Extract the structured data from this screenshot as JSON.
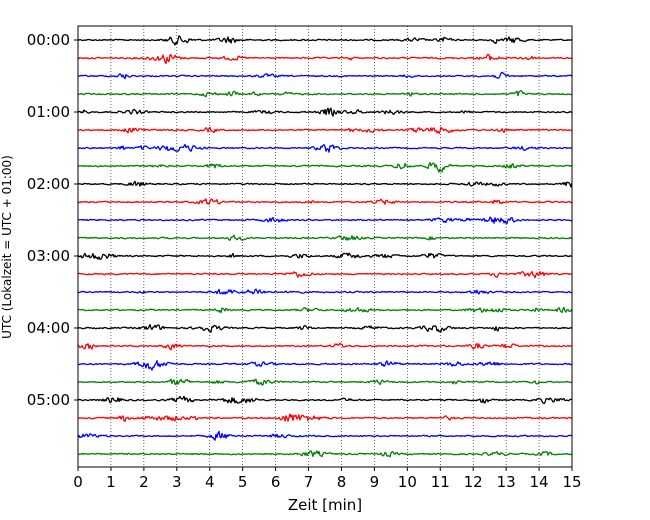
{
  "chart_data": {
    "type": "line",
    "title": "",
    "xlabel": "Zeit  [min]",
    "ylabel": "UTC (Lokalzeit = UTC + 01:00)",
    "xlim": [
      0,
      15
    ],
    "x_ticks": [
      "0",
      "1",
      "2",
      "3",
      "4",
      "5",
      "6",
      "7",
      "8",
      "9",
      "10",
      "11",
      "12",
      "13",
      "14",
      "15"
    ],
    "y_tick_labels": [
      "00:00",
      "01:00",
      "02:00",
      "03:00",
      "04:00",
      "05:00"
    ],
    "trace_minutes_per_line": 15,
    "grid": "vertical dotted lines at each minute",
    "legend": "none",
    "colors": [
      "#000000",
      "#ff0000",
      "#0000ff",
      "#008000"
    ],
    "traces": [
      {
        "start": "00:00",
        "color": "#000000"
      },
      {
        "start": "00:15",
        "color": "#ff0000"
      },
      {
        "start": "00:30",
        "color": "#0000ff"
      },
      {
        "start": "00:45",
        "color": "#008000"
      },
      {
        "start": "01:00",
        "color": "#000000"
      },
      {
        "start": "01:15",
        "color": "#ff0000"
      },
      {
        "start": "01:30",
        "color": "#0000ff"
      },
      {
        "start": "01:45",
        "color": "#008000"
      },
      {
        "start": "02:00",
        "color": "#000000"
      },
      {
        "start": "02:15",
        "color": "#ff0000"
      },
      {
        "start": "02:30",
        "color": "#0000ff"
      },
      {
        "start": "02:45",
        "color": "#008000"
      },
      {
        "start": "03:00",
        "color": "#000000"
      },
      {
        "start": "03:15",
        "color": "#ff0000"
      },
      {
        "start": "03:30",
        "color": "#0000ff"
      },
      {
        "start": "03:45",
        "color": "#008000"
      },
      {
        "start": "04:00",
        "color": "#000000"
      },
      {
        "start": "04:15",
        "color": "#ff0000"
      },
      {
        "start": "04:30",
        "color": "#0000ff"
      },
      {
        "start": "04:45",
        "color": "#008000"
      },
      {
        "start": "05:00",
        "color": "#000000"
      },
      {
        "start": "05:15",
        "color": "#ff0000"
      },
      {
        "start": "05:30",
        "color": "#0000ff"
      },
      {
        "start": "05:45",
        "color": "#008000"
      }
    ]
  }
}
